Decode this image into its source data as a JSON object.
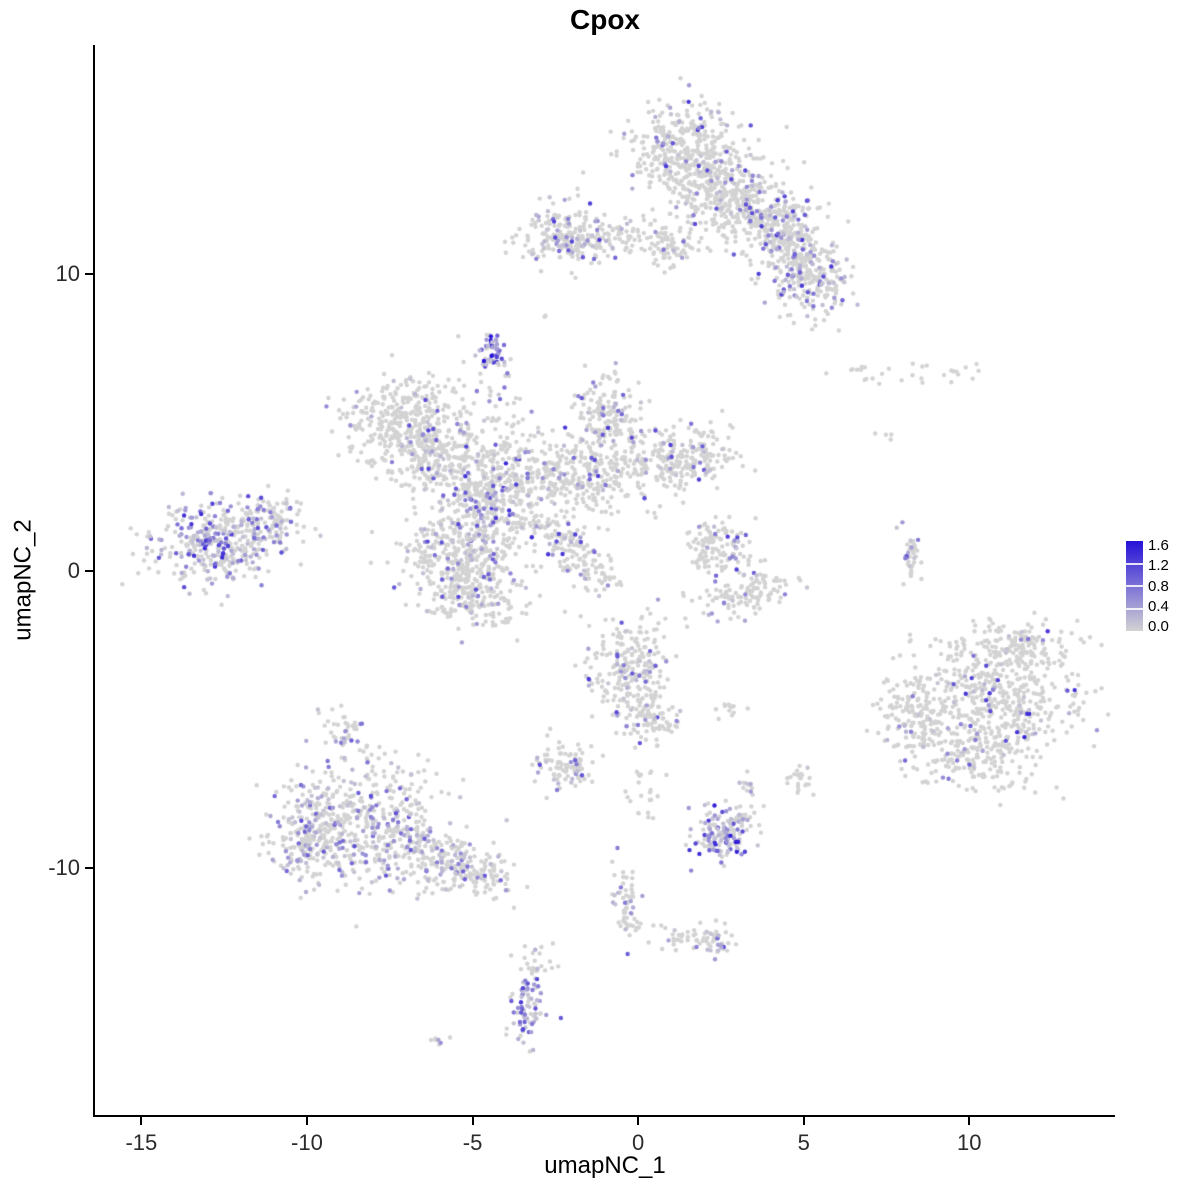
{
  "chart_data": {
    "type": "scatter",
    "title": "Cpox",
    "xlabel": "umapNC_1",
    "ylabel": "umapNC_2",
    "xlim": [
      -16.4,
      14.4
    ],
    "ylim": [
      -18.3,
      17.7
    ],
    "xticks": [
      -15,
      -10,
      -5,
      0,
      5,
      10
    ],
    "yticks": [
      10,
      0,
      -10
    ],
    "grid": false,
    "legend_position": "right",
    "legend_labels": [
      "1.6",
      "1.2",
      "0.8",
      "0.4",
      "0.0"
    ],
    "color_scale": {
      "low": "#D3D3D3",
      "high": "#2611D8",
      "min": 0.0,
      "max": 1.6
    },
    "point_radius": 2.2,
    "seed": 42,
    "clusters": [
      {
        "name": "top-upper",
        "cx": 1.3,
        "cy": 14.2,
        "sx": 0.85,
        "sy": 0.8,
        "rot": -20,
        "n": 330,
        "efrac": 0.1,
        "emax": 1.3
      },
      {
        "name": "top-mid",
        "cx": 2.6,
        "cy": 12.7,
        "sx": 1.05,
        "sy": 0.85,
        "rot": -30,
        "n": 360,
        "efrac": 0.1,
        "emax": 1.3
      },
      {
        "name": "top-right",
        "cx": 4.2,
        "cy": 11.6,
        "sx": 0.9,
        "sy": 0.6,
        "rot": -40,
        "n": 260,
        "efrac": 0.18,
        "emax": 1.3
      },
      {
        "name": "top-lobe-low",
        "cx": 5.1,
        "cy": 9.7,
        "sx": 0.65,
        "sy": 0.55,
        "rot": -50,
        "n": 200,
        "efrac": 0.28,
        "emax": 1.3
      },
      {
        "name": "top-connector",
        "cx": 4.7,
        "cy": 10.8,
        "sx": 0.55,
        "sy": 0.35,
        "rot": -50,
        "n": 90,
        "efrac": 0.15,
        "emax": 1.2
      },
      {
        "name": "top-bridge-left",
        "cx": -0.5,
        "cy": 11.2,
        "sx": 1.1,
        "sy": 0.3,
        "rot": 0,
        "n": 110,
        "efrac": 0.08,
        "emax": 1.0
      },
      {
        "name": "top-left-sub",
        "cx": -2.2,
        "cy": 11.3,
        "sx": 0.7,
        "sy": 0.55,
        "rot": 0,
        "n": 190,
        "efrac": 0.16,
        "emax": 1.4
      },
      {
        "name": "top-small",
        "cx": 0.9,
        "cy": 10.8,
        "sx": 0.35,
        "sy": 0.3,
        "rot": 0,
        "n": 50,
        "efrac": 0.1,
        "emax": 1.0
      },
      {
        "name": "purple-knot",
        "cx": -4.45,
        "cy": 7.3,
        "sx": 0.22,
        "sy": 0.33,
        "rot": 0,
        "n": 48,
        "efrac": 0.85,
        "emax": 1.6
      },
      {
        "name": "knot-trail",
        "cx": -4.05,
        "cy": 5.8,
        "sx": 0.25,
        "sy": 0.55,
        "rot": 0,
        "n": 22,
        "efrac": 0.2,
        "emax": 1.0
      },
      {
        "name": "cen-left",
        "cx": -7.0,
        "cy": 5.1,
        "sx": 0.95,
        "sy": 0.7,
        "rot": 10,
        "n": 360,
        "efrac": 0.08,
        "emax": 1.2
      },
      {
        "name": "cen-left-low",
        "cx": -6.2,
        "cy": 3.9,
        "sx": 0.7,
        "sy": 0.55,
        "rot": 0,
        "n": 200,
        "efrac": 0.1,
        "emax": 1.2
      },
      {
        "name": "cen-mid",
        "cx": -4.5,
        "cy": 2.7,
        "sx": 0.8,
        "sy": 1.0,
        "rot": 0,
        "n": 430,
        "efrac": 0.2,
        "emax": 1.5
      },
      {
        "name": "cen-bottom",
        "cx": -5.3,
        "cy": 0.4,
        "sx": 0.95,
        "sy": 0.8,
        "rot": 0,
        "n": 360,
        "efrac": 0.12,
        "emax": 1.3
      },
      {
        "name": "cen-tail",
        "cx": -4.8,
        "cy": -1.0,
        "sx": 0.6,
        "sy": 0.45,
        "rot": 0,
        "n": 140,
        "efrac": 0.1,
        "emax": 1.2
      },
      {
        "name": "cen-right-mid",
        "cx": -1.6,
        "cy": 3.3,
        "sx": 1.2,
        "sy": 0.75,
        "rot": 0,
        "n": 360,
        "efrac": 0.08,
        "emax": 1.2
      },
      {
        "name": "cen-right-up",
        "cx": -0.9,
        "cy": 5.3,
        "sx": 0.5,
        "sy": 0.65,
        "rot": 0,
        "n": 170,
        "efrac": 0.15,
        "emax": 1.4
      },
      {
        "name": "cen-right-arm",
        "cx": 1.5,
        "cy": 3.9,
        "sx": 0.85,
        "sy": 0.5,
        "rot": 0,
        "n": 210,
        "efrac": 0.1,
        "emax": 1.4
      },
      {
        "name": "cen-streak",
        "cx": -2.3,
        "cy": 1.1,
        "sx": 0.85,
        "sy": 0.28,
        "rot": -35,
        "n": 110,
        "efrac": 0.15,
        "emax": 1.3
      },
      {
        "name": "cen-streak-tip",
        "cx": -1.5,
        "cy": -0.1,
        "sx": 0.45,
        "sy": 0.25,
        "rot": -35,
        "n": 50,
        "efrac": 0.1,
        "emax": 1.2
      },
      {
        "name": "left-main",
        "cx": -12.6,
        "cy": 1.0,
        "sx": 1.05,
        "sy": 0.72,
        "rot": 8,
        "n": 400,
        "efrac": 0.4,
        "emax": 1.4
      },
      {
        "name": "left-tip",
        "cx": -11.1,
        "cy": 1.6,
        "sx": 0.45,
        "sy": 0.3,
        "rot": 0,
        "n": 60,
        "efrac": 0.25,
        "emax": 1.2
      },
      {
        "name": "crescent-top",
        "cx": 2.4,
        "cy": 0.8,
        "sx": 0.5,
        "sy": 0.45,
        "rot": 0,
        "n": 120,
        "efrac": 0.12,
        "emax": 1.2
      },
      {
        "name": "crescent-arc",
        "cx": 3.2,
        "cy": -0.7,
        "sx": 0.75,
        "sy": 0.35,
        "rot": 15,
        "n": 120,
        "efrac": 0.08,
        "emax": 1.0
      },
      {
        "name": "streak-right",
        "cx": 8.2,
        "cy": 0.5,
        "sx": 0.16,
        "sy": 0.55,
        "rot": 0,
        "n": 36,
        "efrac": 0.3,
        "emax": 1.1
      },
      {
        "name": "right-main",
        "cx": 10.8,
        "cy": -4.3,
        "sx": 1.25,
        "sy": 1.1,
        "rot": 0,
        "n": 480,
        "efrac": 0.1,
        "emax": 1.6
      },
      {
        "name": "right-west",
        "cx": 8.3,
        "cy": -4.9,
        "sx": 0.55,
        "sy": 0.85,
        "rot": 0,
        "n": 150,
        "efrac": 0.1,
        "emax": 1.3
      },
      {
        "name": "right-north",
        "cx": 11.4,
        "cy": -2.6,
        "sx": 0.95,
        "sy": 0.45,
        "rot": 0,
        "n": 130,
        "efrac": 0.1,
        "emax": 1.3
      },
      {
        "name": "right-south",
        "cx": 10.3,
        "cy": -6.3,
        "sx": 0.9,
        "sy": 0.5,
        "rot": 0,
        "n": 150,
        "efrac": 0.08,
        "emax": 1.2
      },
      {
        "name": "botcen-main",
        "cx": -0.3,
        "cy": -3.4,
        "sx": 0.65,
        "sy": 0.85,
        "rot": 0,
        "n": 250,
        "efrac": 0.15,
        "emax": 1.5
      },
      {
        "name": "botcen-tail",
        "cx": 0.4,
        "cy": -5.0,
        "sx": 0.4,
        "sy": 0.45,
        "rot": 0,
        "n": 70,
        "efrac": 0.1,
        "emax": 1.2
      },
      {
        "name": "botcen-pair",
        "cx": 2.8,
        "cy": -4.6,
        "sx": 0.25,
        "sy": 0.18,
        "rot": 0,
        "n": 12,
        "efrac": 0.0,
        "emax": 0
      },
      {
        "name": "botcen-drift",
        "cx": 0.2,
        "cy": -7.5,
        "sx": 0.3,
        "sy": 0.5,
        "rot": 0,
        "n": 22,
        "efrac": 0.1,
        "emax": 1.0
      },
      {
        "name": "small-mid",
        "cx": -2.2,
        "cy": -6.6,
        "sx": 0.45,
        "sy": 0.4,
        "rot": 0,
        "n": 95,
        "efrac": 0.22,
        "emax": 1.3
      },
      {
        "name": "botleft-main",
        "cx": -8.3,
        "cy": -8.4,
        "sx": 1.25,
        "sy": 1.0,
        "rot": -15,
        "n": 500,
        "efrac": 0.3,
        "emax": 1.1
      },
      {
        "name": "botleft-west",
        "cx": -10.0,
        "cy": -9.2,
        "sx": 0.6,
        "sy": 0.65,
        "rot": 0,
        "n": 150,
        "efrac": 0.25,
        "emax": 1.0
      },
      {
        "name": "botleft-east",
        "cx": -5.9,
        "cy": -9.7,
        "sx": 0.9,
        "sy": 0.5,
        "rot": -20,
        "n": 170,
        "efrac": 0.15,
        "emax": 1.0
      },
      {
        "name": "botleft-tip",
        "cx": -4.6,
        "cy": -10.3,
        "sx": 0.5,
        "sy": 0.32,
        "rot": -20,
        "n": 70,
        "efrac": 0.12,
        "emax": 1.0
      },
      {
        "name": "botleft-top",
        "cx": -8.9,
        "cy": -5.4,
        "sx": 0.35,
        "sy": 0.4,
        "rot": 0,
        "n": 40,
        "efrac": 0.15,
        "emax": 1.0
      },
      {
        "name": "purple-south",
        "cx": 2.45,
        "cy": -8.8,
        "sx": 0.42,
        "sy": 0.5,
        "rot": 0,
        "n": 130,
        "efrac": 0.55,
        "emax": 1.5
      },
      {
        "name": "purple-south-east",
        "cx": 3.1,
        "cy": -8.4,
        "sx": 0.3,
        "sy": 0.25,
        "rot": 0,
        "n": 35,
        "efrac": 0.1,
        "emax": 1.0
      },
      {
        "name": "tiny-above",
        "cx": 3.4,
        "cy": -7.3,
        "sx": 0.2,
        "sy": 0.2,
        "rot": 0,
        "n": 12,
        "efrac": 0.1,
        "emax": 1.0
      },
      {
        "name": "tiny-right",
        "cx": 4.9,
        "cy": -7.0,
        "sx": 0.2,
        "sy": 0.3,
        "rot": 0,
        "n": 22,
        "efrac": 0.1,
        "emax": 1.0
      },
      {
        "name": "trail-south",
        "cx": -0.35,
        "cy": -11.2,
        "sx": 0.22,
        "sy": 0.75,
        "rot": 0,
        "n": 55,
        "efrac": 0.2,
        "emax": 1.2
      },
      {
        "name": "trail-diag",
        "cx": 1.1,
        "cy": -12.3,
        "sx": 0.55,
        "sy": 0.2,
        "rot": -15,
        "n": 28,
        "efrac": 0.1,
        "emax": 1.0
      },
      {
        "name": "tiny-south",
        "cx": 2.3,
        "cy": -12.4,
        "sx": 0.3,
        "sy": 0.28,
        "rot": 0,
        "n": 45,
        "efrac": 0.4,
        "emax": 1.3
      },
      {
        "name": "bottom-top",
        "cx": -3.1,
        "cy": -13.4,
        "sx": 0.28,
        "sy": 0.5,
        "rot": 0,
        "n": 30,
        "efrac": 0.15,
        "emax": 1.2
      },
      {
        "name": "bottom-dense",
        "cx": -3.35,
        "cy": -14.8,
        "sx": 0.3,
        "sy": 0.5,
        "rot": 0,
        "n": 70,
        "efrac": 0.6,
        "emax": 1.4
      },
      {
        "name": "pair-sw",
        "cx": -6.1,
        "cy": -15.8,
        "sx": 0.18,
        "sy": 0.12,
        "rot": 0,
        "n": 7,
        "efrac": 0.3,
        "emax": 0.8
      },
      {
        "name": "sparse-ne",
        "cx": 8.6,
        "cy": 6.6,
        "sx": 1.3,
        "sy": 0.22,
        "rot": 0,
        "n": 30,
        "efrac": 0.0,
        "emax": 0
      },
      {
        "name": "dots-ne",
        "cx": 7.7,
        "cy": 4.6,
        "sx": 0.25,
        "sy": 0.2,
        "rot": 0,
        "n": 4,
        "efrac": 0.0,
        "emax": 0
      },
      {
        "name": "outlier",
        "cx": -2.8,
        "cy": 8.6,
        "sx": 0.08,
        "sy": 0.08,
        "rot": 0,
        "n": 2,
        "efrac": 0.0,
        "emax": 0
      }
    ]
  }
}
